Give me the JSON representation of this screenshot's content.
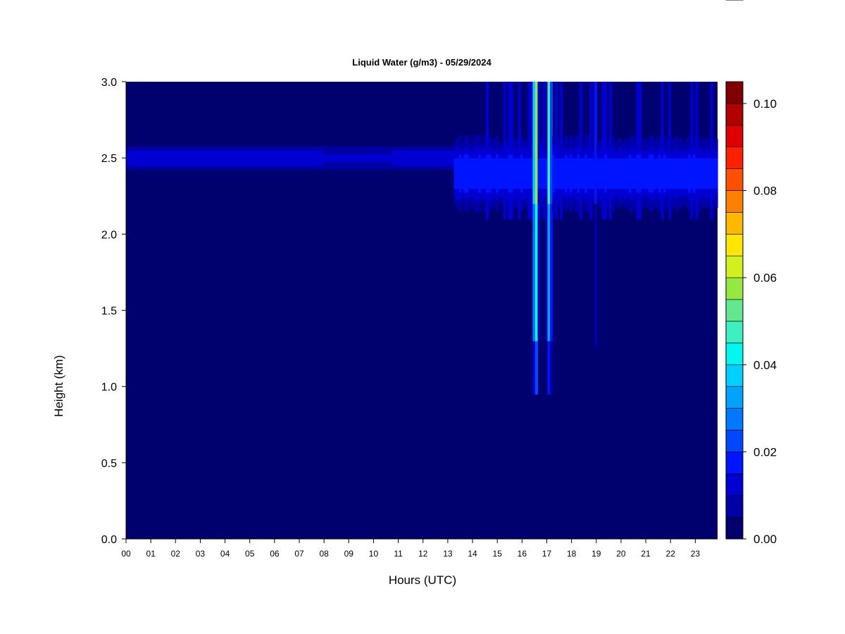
{
  "chart_data": {
    "type": "heatmap",
    "title": "Liquid Water (g/m3) - 05/29/2024",
    "xlabel": "Hours (UTC)",
    "ylabel": "Height (km)",
    "x_range": [
      0,
      23.9
    ],
    "y_range": [
      0,
      3.0
    ],
    "x_ticks": [
      "00",
      "01",
      "02",
      "03",
      "04",
      "05",
      "06",
      "07",
      "08",
      "09",
      "10",
      "11",
      "12",
      "13",
      "14",
      "15",
      "16",
      "17",
      "18",
      "19",
      "20",
      "21",
      "22",
      "23"
    ],
    "y_ticks": [
      "0.0",
      "0.5",
      "1.0",
      "1.5",
      "2.0",
      "2.5",
      "3.0"
    ],
    "colorbar": {
      "min": 0.0,
      "max": 0.105,
      "ticks": [
        "0.00",
        "0.02",
        "0.04",
        "0.06",
        "0.08",
        "0.10"
      ],
      "colors": [
        "#00006e",
        "#0000a6",
        "#0000d2",
        "#0015ff",
        "#0048ff",
        "#0078ff",
        "#00a4ff",
        "#00d0ff",
        "#00f8f0",
        "#3ef0c0",
        "#62e890",
        "#96e840",
        "#d2f020",
        "#ffe600",
        "#ffb800",
        "#ff8000",
        "#ff5000",
        "#ff2000",
        "#e00000",
        "#b00000",
        "#800000"
      ]
    },
    "background_value": 0.0,
    "features": [
      {
        "description": "cloud layer",
        "x_start": 0.0,
        "x_end": 23.9,
        "y_center": 2.5,
        "peak_value": 0.015
      },
      {
        "description": "broadened layer",
        "x_start": 13.2,
        "x_end": 23.9,
        "y_bottom": 2.05,
        "y_top": 2.7,
        "peak_value": 0.02
      },
      {
        "description": "vertical column",
        "x_center": 16.55,
        "y_bottom": 0.95,
        "y_top": 3.0,
        "peak_value": 0.065
      },
      {
        "description": "vertical column",
        "x_center": 17.1,
        "y_bottom": 0.95,
        "y_top": 3.0,
        "peak_value": 0.05
      },
      {
        "description": "vertical column",
        "x_center": 18.95,
        "y_bottom": 1.25,
        "y_top": 3.0,
        "peak_value": 0.02
      }
    ]
  }
}
